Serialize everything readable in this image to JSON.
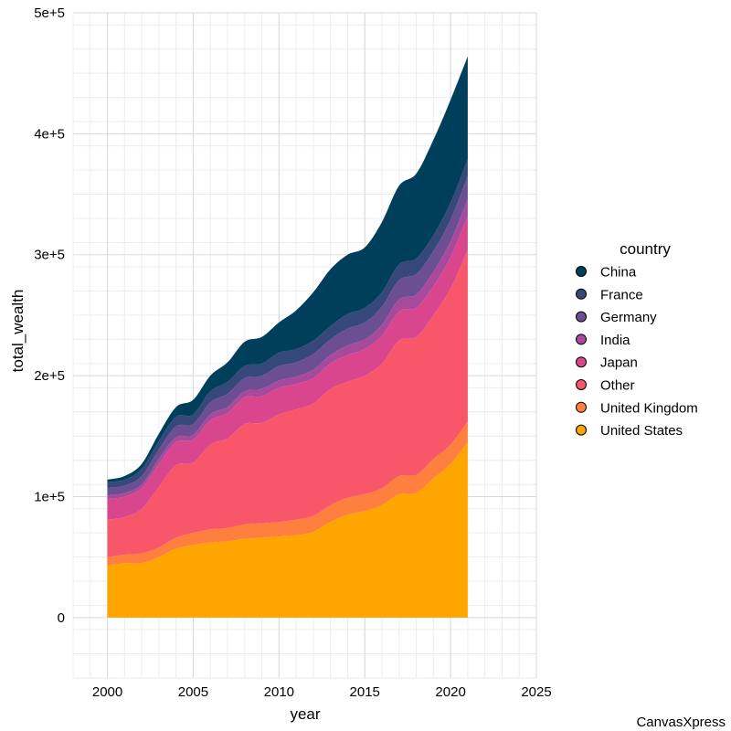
{
  "chart_data": {
    "type": "area",
    "stacked": true,
    "xlabel": "year",
    "ylabel": "total_wealth",
    "xlim": [
      1998,
      2025
    ],
    "ylim": [
      -50000,
      500000
    ],
    "x_ticks": [
      2000,
      2005,
      2010,
      2015,
      2020,
      2025
    ],
    "x_tick_labels": [
      "2000",
      "2005",
      "2010",
      "2015",
      "2020",
      "2025"
    ],
    "y_ticks": [
      0,
      100000,
      200000,
      300000,
      400000,
      500000
    ],
    "y_tick_labels": [
      "0",
      "1e+5",
      "2e+5",
      "3e+5",
      "4e+5",
      "5e+5"
    ],
    "grid": true,
    "legend_position": "right",
    "legend_title": "country",
    "x": [
      2000,
      2001,
      2002,
      2003,
      2004,
      2005,
      2006,
      2007,
      2008,
      2009,
      2010,
      2011,
      2012,
      2013,
      2014,
      2015,
      2016,
      2017,
      2018,
      2019,
      2020,
      2021
    ],
    "series": [
      {
        "name": "United States",
        "color": "#FFA500",
        "values": [
          43000,
          45000,
          45000,
          50000,
          57000,
          60000,
          62000,
          63000,
          65000,
          66000,
          67000,
          68000,
          71000,
          79000,
          85000,
          88000,
          93000,
          102000,
          103000,
          115000,
          127000,
          145000
        ]
      },
      {
        "name": "United Kingdom",
        "color": "#FF7F3F",
        "values": [
          7000,
          7000,
          8000,
          8000,
          9000,
          10000,
          11000,
          11000,
          12000,
          12000,
          12000,
          13000,
          13000,
          14000,
          14000,
          14000,
          14000,
          15000,
          15000,
          16000,
          16000,
          17000
        ]
      },
      {
        "name": "Other",
        "color": "#F8576A",
        "values": [
          31000,
          31000,
          37000,
          50000,
          60000,
          58000,
          70000,
          74000,
          83000,
          83000,
          89000,
          91000,
          93000,
          96000,
          96000,
          98000,
          103000,
          112000,
          114000,
          119000,
          129000,
          142000
        ]
      },
      {
        "name": "Japan",
        "color": "#D9468D",
        "values": [
          17000,
          17000,
          17000,
          19000,
          19000,
          19000,
          20000,
          21000,
          22000,
          22000,
          22000,
          21000,
          21000,
          21000,
          22000,
          22000,
          23000,
          24000,
          24000,
          24000,
          26000,
          28000
        ]
      },
      {
        "name": "India",
        "color": "#A84A9C",
        "values": [
          3000,
          3000,
          3000,
          4000,
          4000,
          4000,
          5000,
          5000,
          5000,
          6000,
          6000,
          6000,
          7000,
          7000,
          8000,
          8000,
          9000,
          10000,
          11000,
          12000,
          13000,
          14000
        ]
      },
      {
        "name": "Germany",
        "color": "#6C4E92",
        "values": [
          6000,
          6000,
          7000,
          8000,
          9000,
          9000,
          10000,
          11000,
          11000,
          11000,
          12000,
          12000,
          13000,
          13000,
          14000,
          14000,
          15000,
          16000,
          17000,
          17000,
          18000,
          19000
        ]
      },
      {
        "name": "France",
        "color": "#36477A",
        "values": [
          5000,
          5000,
          6000,
          7000,
          8000,
          8000,
          9000,
          10000,
          10000,
          10000,
          11000,
          11000,
          11000,
          11000,
          12000,
          12000,
          12000,
          13000,
          13000,
          13000,
          14000,
          14000
        ]
      },
      {
        "name": "China",
        "color": "#003F5C",
        "values": [
          2000,
          3000,
          4000,
          6000,
          8000,
          12000,
          13000,
          16000,
          20000,
          22000,
          25000,
          32000,
          40000,
          47000,
          49000,
          50000,
          58000,
          65000,
          70000,
          79000,
          85000,
          85000
        ]
      }
    ]
  },
  "watermark": "CanvasXpress"
}
